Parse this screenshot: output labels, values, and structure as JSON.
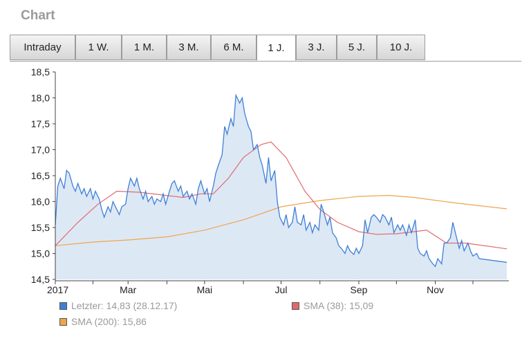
{
  "header": {
    "title": "Chart"
  },
  "tabs": [
    {
      "label": "Intraday"
    },
    {
      "label": "1 W."
    },
    {
      "label": "1 M."
    },
    {
      "label": "3 M."
    },
    {
      "label": "6 M."
    },
    {
      "label": "1 J."
    },
    {
      "label": "3 J."
    },
    {
      "label": "5 J."
    },
    {
      "label": "10 J."
    }
  ],
  "active_tab": "1 J.",
  "legend": [
    {
      "label": "Letzter: 14,83 (28.12.17)",
      "color": "#3d7fd6"
    },
    {
      "label": "SMA (38): 15,09",
      "color": "#e06a6a"
    },
    {
      "label": "SMA (200): 15,86",
      "color": "#f0a44a"
    }
  ],
  "chart_data": {
    "type": "line",
    "title": "",
    "xlabel": "",
    "ylabel": "",
    "ylim": [
      14.5,
      18.5
    ],
    "yticks": [
      "18,5",
      "18,0",
      "17,5",
      "17,0",
      "16,5",
      "16,0",
      "15,5",
      "15,0",
      "14,5"
    ],
    "xticks": [
      "2017",
      "Mar",
      "Mai",
      "Jul",
      "Sep",
      "Nov"
    ],
    "grid": false,
    "x_domain": [
      "2017-01-02",
      "2017-12-28"
    ],
    "fill_under_first_series": true,
    "colors": {
      "price": "#3d7fd6",
      "sma38": "#e06a6a",
      "sma200": "#f0a44a",
      "area": "#dde8f5"
    },
    "series": [
      {
        "name": "Letzter",
        "points": [
          [
            "2017-01-02",
            15.55
          ],
          [
            "2017-01-04",
            16.3
          ],
          [
            "2017-01-06",
            16.45
          ],
          [
            "2017-01-09",
            16.25
          ],
          [
            "2017-01-11",
            16.6
          ],
          [
            "2017-01-13",
            16.55
          ],
          [
            "2017-01-16",
            16.3
          ],
          [
            "2017-01-18",
            16.2
          ],
          [
            "2017-01-20",
            16.35
          ],
          [
            "2017-01-23",
            16.15
          ],
          [
            "2017-01-25",
            16.25
          ],
          [
            "2017-01-27",
            16.1
          ],
          [
            "2017-01-30",
            16.25
          ],
          [
            "2017-02-01",
            16.05
          ],
          [
            "2017-02-03",
            16.2
          ],
          [
            "2017-02-06",
            16.05
          ],
          [
            "2017-02-08",
            15.85
          ],
          [
            "2017-02-10",
            15.7
          ],
          [
            "2017-02-13",
            15.9
          ],
          [
            "2017-02-15",
            15.8
          ],
          [
            "2017-02-17",
            16.0
          ],
          [
            "2017-02-20",
            15.85
          ],
          [
            "2017-02-22",
            15.75
          ],
          [
            "2017-02-24",
            15.9
          ],
          [
            "2017-02-27",
            15.95
          ],
          [
            "2017-03-01",
            16.25
          ],
          [
            "2017-03-03",
            16.45
          ],
          [
            "2017-03-06",
            16.3
          ],
          [
            "2017-03-08",
            16.45
          ],
          [
            "2017-03-10",
            16.25
          ],
          [
            "2017-03-13",
            16.05
          ],
          [
            "2017-03-15",
            16.2
          ],
          [
            "2017-03-17",
            16.0
          ],
          [
            "2017-03-20",
            16.1
          ],
          [
            "2017-03-22",
            15.95
          ],
          [
            "2017-03-24",
            16.05
          ],
          [
            "2017-03-27",
            16.0
          ],
          [
            "2017-03-29",
            16.15
          ],
          [
            "2017-03-31",
            15.95
          ],
          [
            "2017-04-03",
            16.2
          ],
          [
            "2017-04-05",
            16.35
          ],
          [
            "2017-04-07",
            16.4
          ],
          [
            "2017-04-10",
            16.2
          ],
          [
            "2017-04-12",
            16.3
          ],
          [
            "2017-04-14",
            16.1
          ],
          [
            "2017-04-17",
            16.2
          ],
          [
            "2017-04-19",
            16.05
          ],
          [
            "2017-04-21",
            16.15
          ],
          [
            "2017-04-24",
            15.95
          ],
          [
            "2017-04-26",
            16.25
          ],
          [
            "2017-04-28",
            16.4
          ],
          [
            "2017-05-01",
            16.15
          ],
          [
            "2017-05-03",
            16.25
          ],
          [
            "2017-05-05",
            16.0
          ],
          [
            "2017-05-08",
            16.3
          ],
          [
            "2017-05-10",
            16.55
          ],
          [
            "2017-05-12",
            16.7
          ],
          [
            "2017-05-15",
            16.9
          ],
          [
            "2017-05-17",
            17.45
          ],
          [
            "2017-05-19",
            17.3
          ],
          [
            "2017-05-22",
            17.6
          ],
          [
            "2017-05-24",
            17.45
          ],
          [
            "2017-05-26",
            18.05
          ],
          [
            "2017-05-29",
            17.9
          ],
          [
            "2017-05-31",
            18.0
          ],
          [
            "2017-06-02",
            17.7
          ],
          [
            "2017-06-05",
            17.45
          ],
          [
            "2017-06-07",
            17.35
          ],
          [
            "2017-06-09",
            17.0
          ],
          [
            "2017-06-12",
            17.1
          ],
          [
            "2017-06-14",
            16.85
          ],
          [
            "2017-06-16",
            16.7
          ],
          [
            "2017-06-19",
            16.35
          ],
          [
            "2017-06-21",
            16.85
          ],
          [
            "2017-06-23",
            16.4
          ],
          [
            "2017-06-26",
            16.6
          ],
          [
            "2017-06-28",
            16.0
          ],
          [
            "2017-06-30",
            15.7
          ],
          [
            "2017-07-03",
            15.55
          ],
          [
            "2017-07-05",
            15.75
          ],
          [
            "2017-07-07",
            15.5
          ],
          [
            "2017-07-10",
            15.6
          ],
          [
            "2017-07-12",
            15.9
          ],
          [
            "2017-07-14",
            15.6
          ],
          [
            "2017-07-17",
            15.55
          ],
          [
            "2017-07-19",
            15.75
          ],
          [
            "2017-07-21",
            15.45
          ],
          [
            "2017-07-24",
            15.6
          ],
          [
            "2017-07-26",
            15.4
          ],
          [
            "2017-07-28",
            15.55
          ],
          [
            "2017-07-31",
            15.45
          ],
          [
            "2017-08-02",
            15.95
          ],
          [
            "2017-08-04",
            15.8
          ],
          [
            "2017-08-07",
            15.55
          ],
          [
            "2017-08-09",
            15.7
          ],
          [
            "2017-08-11",
            15.4
          ],
          [
            "2017-08-14",
            15.3
          ],
          [
            "2017-08-16",
            15.15
          ],
          [
            "2017-08-18",
            15.1
          ],
          [
            "2017-08-21",
            15.0
          ],
          [
            "2017-08-23",
            15.15
          ],
          [
            "2017-08-25",
            15.05
          ],
          [
            "2017-08-28",
            14.98
          ],
          [
            "2017-08-30",
            15.1
          ],
          [
            "2017-09-01",
            15.0
          ],
          [
            "2017-09-04",
            15.15
          ],
          [
            "2017-09-06",
            15.65
          ],
          [
            "2017-09-08",
            15.4
          ],
          [
            "2017-09-11",
            15.7
          ],
          [
            "2017-09-13",
            15.75
          ],
          [
            "2017-09-15",
            15.7
          ],
          [
            "2017-09-18",
            15.6
          ],
          [
            "2017-09-20",
            15.75
          ],
          [
            "2017-09-22",
            15.7
          ],
          [
            "2017-09-25",
            15.55
          ],
          [
            "2017-09-27",
            15.7
          ],
          [
            "2017-09-29",
            15.4
          ],
          [
            "2017-10-02",
            15.55
          ],
          [
            "2017-10-04",
            15.45
          ],
          [
            "2017-10-06",
            15.55
          ],
          [
            "2017-10-09",
            15.35
          ],
          [
            "2017-10-11",
            15.55
          ],
          [
            "2017-10-13",
            15.4
          ],
          [
            "2017-10-16",
            15.65
          ],
          [
            "2017-10-18",
            15.1
          ],
          [
            "2017-10-20",
            15.0
          ],
          [
            "2017-10-23",
            14.95
          ],
          [
            "2017-10-25",
            15.05
          ],
          [
            "2017-10-27",
            14.9
          ],
          [
            "2017-10-30",
            14.8
          ],
          [
            "2017-11-01",
            14.75
          ],
          [
            "2017-11-03",
            14.9
          ],
          [
            "2017-11-06",
            14.8
          ],
          [
            "2017-11-08",
            15.2
          ],
          [
            "2017-11-10",
            15.2
          ],
          [
            "2017-11-13",
            15.3
          ],
          [
            "2017-11-15",
            15.6
          ],
          [
            "2017-11-17",
            15.4
          ],
          [
            "2017-11-20",
            15.1
          ],
          [
            "2017-11-22",
            15.25
          ],
          [
            "2017-11-24",
            15.05
          ],
          [
            "2017-11-27",
            15.2
          ],
          [
            "2017-11-29",
            15.05
          ],
          [
            "2017-12-01",
            14.95
          ],
          [
            "2017-12-04",
            15.0
          ],
          [
            "2017-12-06",
            14.9
          ],
          [
            "2017-12-28",
            14.83
          ]
        ]
      },
      {
        "name": "SMA (38)",
        "points": [
          [
            "2017-01-02",
            15.15
          ],
          [
            "2017-01-20",
            15.6
          ],
          [
            "2017-02-05",
            15.95
          ],
          [
            "2017-02-20",
            16.2
          ],
          [
            "2017-03-10",
            16.18
          ],
          [
            "2017-03-31",
            16.12
          ],
          [
            "2017-04-14",
            16.08
          ],
          [
            "2017-04-28",
            16.15
          ],
          [
            "2017-05-08",
            16.15
          ],
          [
            "2017-05-20",
            16.45
          ],
          [
            "2017-06-01",
            16.85
          ],
          [
            "2017-06-15",
            17.1
          ],
          [
            "2017-06-23",
            17.15
          ],
          [
            "2017-07-05",
            16.85
          ],
          [
            "2017-07-20",
            16.2
          ],
          [
            "2017-08-01",
            15.85
          ],
          [
            "2017-08-15",
            15.6
          ],
          [
            "2017-09-01",
            15.42
          ],
          [
            "2017-09-15",
            15.37
          ],
          [
            "2017-10-01",
            15.38
          ],
          [
            "2017-10-15",
            15.42
          ],
          [
            "2017-10-25",
            15.45
          ],
          [
            "2017-11-10",
            15.2
          ],
          [
            "2017-11-25",
            15.2
          ],
          [
            "2017-12-28",
            15.09
          ]
        ]
      },
      {
        "name": "SMA (200)",
        "points": [
          [
            "2017-01-02",
            15.15
          ],
          [
            "2017-02-01",
            15.22
          ],
          [
            "2017-03-01",
            15.26
          ],
          [
            "2017-04-01",
            15.32
          ],
          [
            "2017-05-01",
            15.45
          ],
          [
            "2017-06-01",
            15.65
          ],
          [
            "2017-07-01",
            15.9
          ],
          [
            "2017-08-01",
            16.02
          ],
          [
            "2017-09-01",
            16.1
          ],
          [
            "2017-09-25",
            16.12
          ],
          [
            "2017-10-15",
            16.08
          ],
          [
            "2017-11-15",
            15.98
          ],
          [
            "2017-12-28",
            15.86
          ]
        ]
      }
    ]
  }
}
